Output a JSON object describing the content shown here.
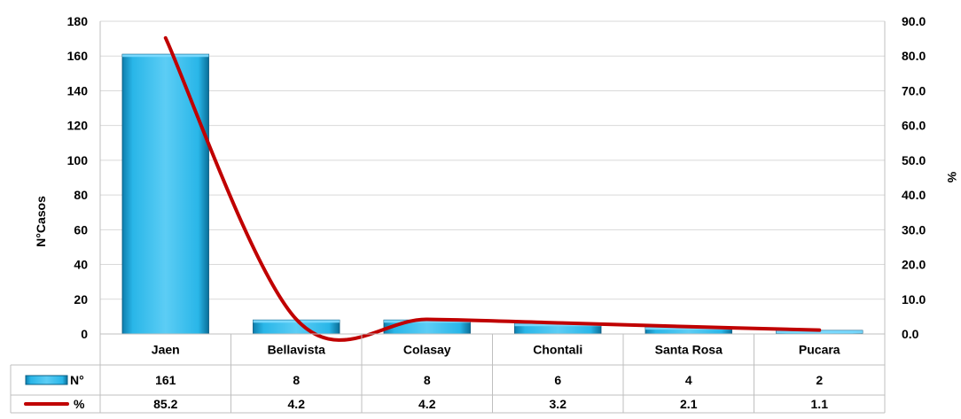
{
  "chart_data": {
    "type": "bar",
    "categories": [
      "Jaen",
      "Bellavista",
      "Colasay",
      "Chontali",
      "Santa Rosa",
      "Pucara"
    ],
    "series": [
      {
        "name": "N°",
        "type": "bar",
        "axis": "left",
        "values": [
          161,
          8,
          8,
          6,
          4,
          2
        ],
        "labels": [
          "161",
          "8",
          "8",
          "6",
          "4",
          "2"
        ],
        "color": "#29B6E8"
      },
      {
        "name": "%",
        "type": "line",
        "axis": "right",
        "values": [
          85.2,
          4.2,
          4.2,
          3.2,
          2.1,
          1.1
        ],
        "labels": [
          "85.2",
          "4.2",
          "4.2",
          "3.2",
          "2.1",
          "1.1"
        ],
        "color": "#C00000"
      }
    ],
    "ylabel": "N°Casos",
    "y2label": "%",
    "ylim": [
      0,
      180
    ],
    "y2lim": [
      0,
      90
    ],
    "yticks": [
      "0",
      "20",
      "40",
      "60",
      "80",
      "100",
      "120",
      "140",
      "160",
      "180"
    ],
    "y2ticks": [
      "0.0",
      "10.0",
      "20.0",
      "30.0",
      "40.0",
      "50.0",
      "60.0",
      "70.0",
      "80.0",
      "90.0"
    ],
    "grid": true,
    "legend": "data-table"
  }
}
